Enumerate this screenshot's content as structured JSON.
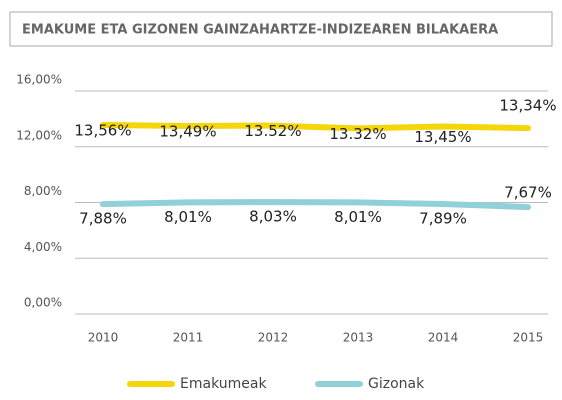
{
  "chart_data": {
    "type": "line",
    "title": "EMAKUME ETA GIZONEN GAINZAHARTZE-INDIZEAREN BILAKAERA",
    "categories": [
      "2010",
      "2011",
      "2012",
      "2013",
      "2014",
      "2015"
    ],
    "series": [
      {
        "name": "Emakumeak",
        "color": "#f5d60a",
        "values": [
          13.56,
          13.49,
          13.52,
          13.32,
          13.45,
          13.34
        ],
        "value_labels": [
          "13,56%",
          "13,49%",
          "13.52%",
          "13.32%",
          "13,45%",
          "13,34%"
        ]
      },
      {
        "name": "Gizonak",
        "color": "#8fd0d9",
        "values": [
          7.88,
          8.01,
          8.03,
          8.01,
          7.89,
          7.67
        ],
        "value_labels": [
          "7,88%",
          "8,01%",
          "8,03%",
          "8,01%",
          "7,89%",
          "7,67%"
        ]
      }
    ],
    "ylim": [
      0,
      16
    ],
    "yticks": [
      {
        "value": 0,
        "label": "0,00%"
      },
      {
        "value": 4,
        "label": "4,00%"
      },
      {
        "value": 8,
        "label": "8,00%"
      },
      {
        "value": 12,
        "label": "12,00%"
      },
      {
        "value": 16,
        "label": "16,00%"
      }
    ],
    "grid": true
  }
}
